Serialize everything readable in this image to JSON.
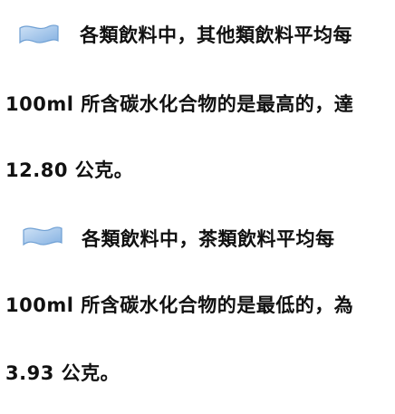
{
  "paragraphs": [
    {
      "lines": [
        "各類飲料中，其他類飲料平均每",
        "100ml 所含碳水化合物的是最高的，達",
        "12.80 公克。"
      ]
    },
    {
      "lines": [
        "各類飲料中，茶類飲料平均每",
        "100ml 所含碳水化合物的是最低的，為",
        "3.93 公克。"
      ]
    }
  ],
  "icons": {
    "bullet": "waving-flag-icon",
    "bullet_color": "#9ec3ea",
    "bullet_border": "#6e9fd3"
  }
}
